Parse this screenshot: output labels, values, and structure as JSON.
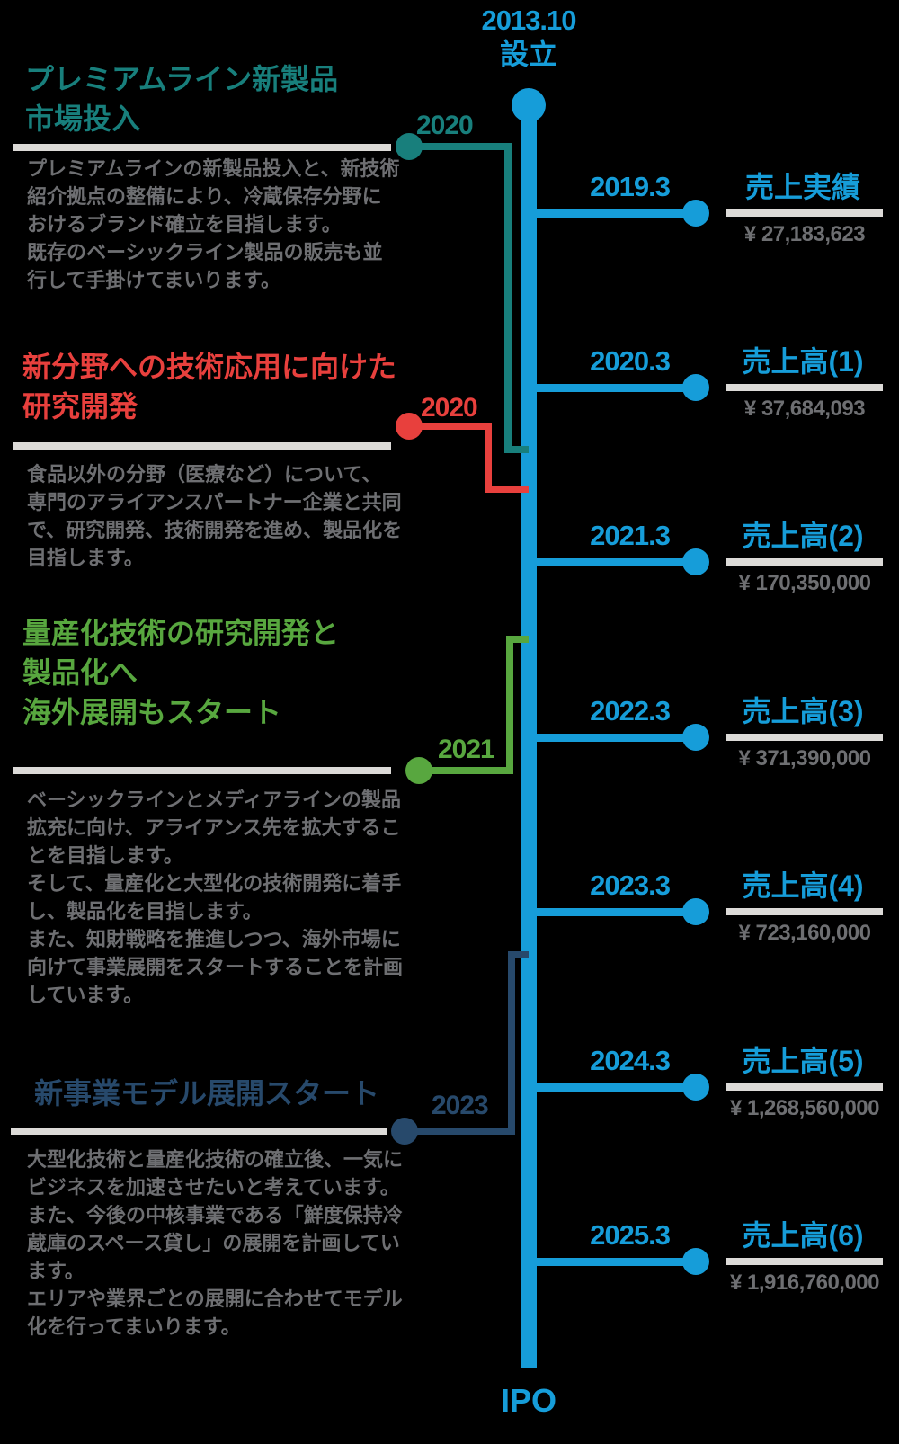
{
  "colors": {
    "background": "#000000",
    "blue": "#169dd9",
    "teal": "#187f7c",
    "red": "#e8403d",
    "green": "#58a73f",
    "navy": "#27496b",
    "body_text": "#6e6f72",
    "underline": "#dcdad7"
  },
  "timeline": {
    "origin": {
      "date": "2013.10",
      "label": "設立"
    },
    "end_label": "IPO",
    "milestones_right": [
      {
        "date": "2019.3",
        "label": "売上実績",
        "amount": "¥ 27,183,623"
      },
      {
        "date": "2020.3",
        "label": "売上高(1)",
        "amount": "¥ 37,684,093"
      },
      {
        "date": "2021.3",
        "label": "売上高(2)",
        "amount": "¥ 170,350,000"
      },
      {
        "date": "2022.3",
        "label": "売上高(3)",
        "amount": "¥ 371,390,000"
      },
      {
        "date": "2023.3",
        "label": "売上高(4)",
        "amount": "¥ 723,160,000"
      },
      {
        "date": "2024.3",
        "label": "売上高(5)",
        "amount": "¥ 1,268,560,000"
      },
      {
        "date": "2025.3",
        "label": "売上高(6)",
        "amount": "¥ 1,916,760,000"
      }
    ],
    "milestones_left": [
      {
        "year": "2020",
        "color": "teal",
        "title": "プレミアムライン新製品\n市場投入",
        "body": "プレミアムラインの新製品投入と、新技術\n紹介拠点の整備により、冷蔵保存分野に\nおけるブランド確立を目指します。\n既存のベーシックライン製品の販売も並\n行して手掛けてまいります。"
      },
      {
        "year": "2020",
        "color": "red",
        "title": "新分野への技術応用に向けた\n研究開発",
        "body": "食品以外の分野（医療など）について、\n専門のアライアンスパートナー企業と共同\nで、研究開発、技術開発を進め、製品化を\n目指します。"
      },
      {
        "year": "2021",
        "color": "green",
        "title": "量産化技術の研究開発と\n製品化へ\n海外展開もスタート",
        "body": "ベーシックラインとメディアラインの製品\n拡充に向け、アライアンス先を拡大するこ\nとを目指します。\nそして、量産化と大型化の技術開発に着手\nし、製品化を目指します。\nまた、知財戦略を推進しつつ、海外市場に\n向けて事業展開をスタートすることを計画\nしています。"
      },
      {
        "year": "2023",
        "color": "navy",
        "title": "新事業モデル展開スタート",
        "body": "大型化技術と量産化技術の確立後、一気に\nビジネスを加速させたいと考えています。\nまた、今後の中核事業である「鮮度保持冷\n蔵庫のスペース貸し」の展開を計画してい\nます。\nエリアや業界ごとの展開に合わせてモデル\n化を行ってまいります。"
      }
    ]
  }
}
